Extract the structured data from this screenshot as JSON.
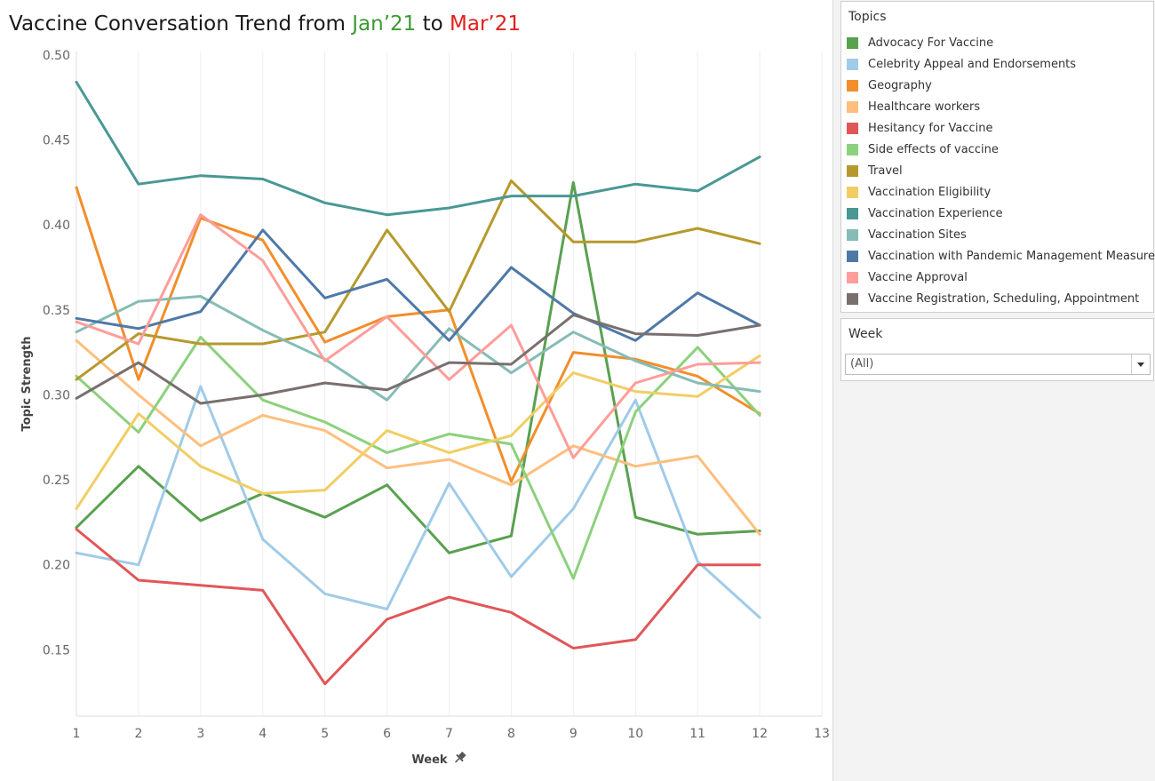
{
  "title": {
    "prefix": "Vaccine Conversation Trend from ",
    "start": "Jan’21",
    "middle": " to ",
    "end": "Mar’21",
    "start_color": "#3a9a33",
    "end_color": "#e0211d"
  },
  "legend": {
    "header": "Topics"
  },
  "week_filter": {
    "header": "Week",
    "value": "(All)"
  },
  "chart_data": {
    "type": "line",
    "xlabel": "Week",
    "ylabel": "Topic Strength",
    "x": [
      1,
      2,
      3,
      4,
      5,
      6,
      7,
      8,
      9,
      10,
      11,
      12
    ],
    "x_ticks": [
      "1",
      "2",
      "3",
      "4",
      "5",
      "6",
      "7",
      "8",
      "9",
      "10",
      "11",
      "12",
      "13"
    ],
    "xlim": [
      1,
      13
    ],
    "y_ticks": [
      "0.15",
      "0.20",
      "0.25",
      "0.30",
      "0.35",
      "0.40",
      "0.45",
      "0.50"
    ],
    "ylim": [
      0.111,
      0.502
    ],
    "grid": "vertical",
    "series": [
      {
        "name": "Advocacy For Vaccine",
        "color": "#59a14f",
        "values": [
          0.222,
          0.258,
          0.226,
          0.242,
          0.228,
          0.247,
          0.207,
          0.217,
          0.425,
          0.228,
          0.218,
          0.22
        ]
      },
      {
        "name": "Celebrity Appeal and Endorsements",
        "color": "#a0cbe8",
        "values": [
          0.207,
          0.2,
          0.305,
          0.215,
          0.183,
          0.174,
          0.248,
          0.193,
          0.233,
          0.297,
          0.202,
          0.169
        ]
      },
      {
        "name": "Geography",
        "color": "#f28e2b",
        "values": [
          0.422,
          0.309,
          0.404,
          0.391,
          0.331,
          0.346,
          0.35,
          0.249,
          0.325,
          0.321,
          0.311,
          0.289
        ]
      },
      {
        "name": "Healthcare workers",
        "color": "#ffbe7d",
        "values": [
          0.332,
          0.3,
          0.27,
          0.288,
          0.279,
          0.257,
          0.262,
          0.247,
          0.27,
          0.258,
          0.264,
          0.218
        ]
      },
      {
        "name": "Hesitancy for Vaccine",
        "color": "#e15759",
        "values": [
          0.221,
          0.191,
          0.188,
          0.185,
          0.13,
          0.168,
          0.181,
          0.172,
          0.151,
          0.156,
          0.2,
          0.2
        ]
      },
      {
        "name": "Side effects of vaccine",
        "color": "#8cd17d",
        "values": [
          0.311,
          0.278,
          0.334,
          0.297,
          0.284,
          0.266,
          0.277,
          0.271,
          0.192,
          0.29,
          0.328,
          0.288
        ]
      },
      {
        "name": "Travel",
        "color": "#b6992d",
        "values": [
          0.309,
          0.336,
          0.33,
          0.33,
          0.337,
          0.397,
          0.349,
          0.426,
          0.39,
          0.39,
          0.398,
          0.389
        ]
      },
      {
        "name": "Vaccination Eligibility",
        "color": "#f1ce63",
        "values": [
          0.233,
          0.289,
          0.258,
          0.242,
          0.244,
          0.279,
          0.266,
          0.276,
          0.313,
          0.302,
          0.299,
          0.323
        ]
      },
      {
        "name": "Vaccination Experience",
        "color": "#499894",
        "values": [
          0.484,
          0.424,
          0.429,
          0.427,
          0.413,
          0.406,
          0.41,
          0.417,
          0.417,
          0.424,
          0.42,
          0.44
        ]
      },
      {
        "name": "Vaccination Sites",
        "color": "#86bcb6",
        "values": [
          0.337,
          0.355,
          0.358,
          0.338,
          0.321,
          0.297,
          0.339,
          0.313,
          0.337,
          0.32,
          0.307,
          0.302
        ]
      },
      {
        "name": "Vaccination with Pandemic Management Measures",
        "color": "#4e79a7",
        "values": [
          0.345,
          0.339,
          0.349,
          0.397,
          0.357,
          0.368,
          0.332,
          0.375,
          0.348,
          0.332,
          0.36,
          0.341
        ]
      },
      {
        "name": "Vaccine Approval",
        "color": "#ff9d9a",
        "values": [
          0.343,
          0.33,
          0.406,
          0.379,
          0.32,
          0.346,
          0.309,
          0.341,
          0.263,
          0.307,
          0.318,
          0.319
        ]
      },
      {
        "name": "Vaccine Registration, Scheduling, Appointment",
        "color": "#79706e",
        "values": [
          0.298,
          0.319,
          0.295,
          0.3,
          0.307,
          0.303,
          0.319,
          0.318,
          0.347,
          0.336,
          0.335,
          0.341
        ]
      }
    ]
  }
}
